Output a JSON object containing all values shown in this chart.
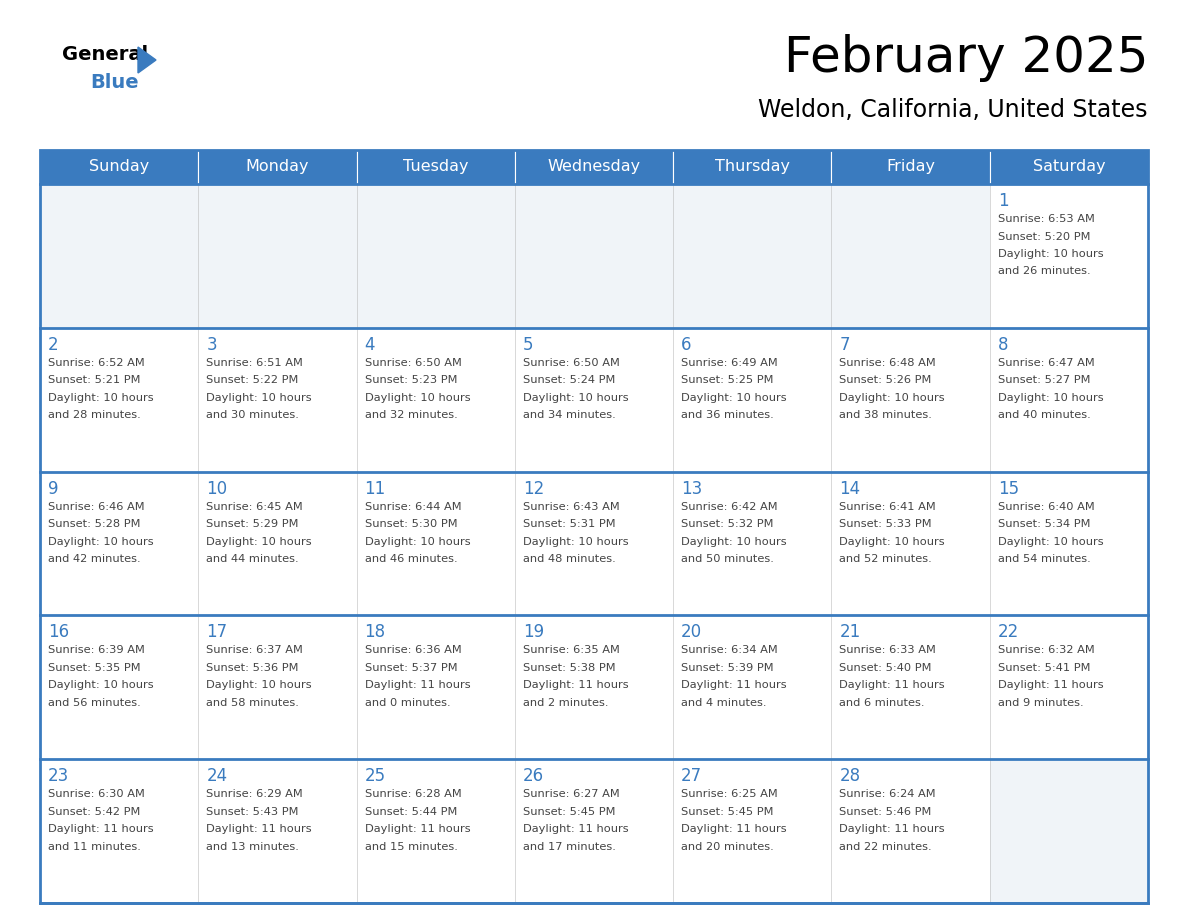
{
  "title": "February 2025",
  "subtitle": "Weldon, California, United States",
  "header_bg": "#3a7bbf",
  "header_text_color": "#ffffff",
  "day_number_color": "#3a7bbf",
  "text_color": "#444444",
  "line_color": "#3a7bbf",
  "border_color": "#3a7bbf",
  "cell_bg": "#ffffff",
  "empty_cell_bg": "#f0f4f8",
  "days_of_week": [
    "Sunday",
    "Monday",
    "Tuesday",
    "Wednesday",
    "Thursday",
    "Friday",
    "Saturday"
  ],
  "weeks": [
    [
      {
        "day": null,
        "sunrise": null,
        "sunset": null,
        "daylight": null
      },
      {
        "day": null,
        "sunrise": null,
        "sunset": null,
        "daylight": null
      },
      {
        "day": null,
        "sunrise": null,
        "sunset": null,
        "daylight": null
      },
      {
        "day": null,
        "sunrise": null,
        "sunset": null,
        "daylight": null
      },
      {
        "day": null,
        "sunrise": null,
        "sunset": null,
        "daylight": null
      },
      {
        "day": null,
        "sunrise": null,
        "sunset": null,
        "daylight": null
      },
      {
        "day": 1,
        "sunrise": "6:53 AM",
        "sunset": "5:20 PM",
        "daylight": "10 hours\nand 26 minutes."
      }
    ],
    [
      {
        "day": 2,
        "sunrise": "6:52 AM",
        "sunset": "5:21 PM",
        "daylight": "10 hours\nand 28 minutes."
      },
      {
        "day": 3,
        "sunrise": "6:51 AM",
        "sunset": "5:22 PM",
        "daylight": "10 hours\nand 30 minutes."
      },
      {
        "day": 4,
        "sunrise": "6:50 AM",
        "sunset": "5:23 PM",
        "daylight": "10 hours\nand 32 minutes."
      },
      {
        "day": 5,
        "sunrise": "6:50 AM",
        "sunset": "5:24 PM",
        "daylight": "10 hours\nand 34 minutes."
      },
      {
        "day": 6,
        "sunrise": "6:49 AM",
        "sunset": "5:25 PM",
        "daylight": "10 hours\nand 36 minutes."
      },
      {
        "day": 7,
        "sunrise": "6:48 AM",
        "sunset": "5:26 PM",
        "daylight": "10 hours\nand 38 minutes."
      },
      {
        "day": 8,
        "sunrise": "6:47 AM",
        "sunset": "5:27 PM",
        "daylight": "10 hours\nand 40 minutes."
      }
    ],
    [
      {
        "day": 9,
        "sunrise": "6:46 AM",
        "sunset": "5:28 PM",
        "daylight": "10 hours\nand 42 minutes."
      },
      {
        "day": 10,
        "sunrise": "6:45 AM",
        "sunset": "5:29 PM",
        "daylight": "10 hours\nand 44 minutes."
      },
      {
        "day": 11,
        "sunrise": "6:44 AM",
        "sunset": "5:30 PM",
        "daylight": "10 hours\nand 46 minutes."
      },
      {
        "day": 12,
        "sunrise": "6:43 AM",
        "sunset": "5:31 PM",
        "daylight": "10 hours\nand 48 minutes."
      },
      {
        "day": 13,
        "sunrise": "6:42 AM",
        "sunset": "5:32 PM",
        "daylight": "10 hours\nand 50 minutes."
      },
      {
        "day": 14,
        "sunrise": "6:41 AM",
        "sunset": "5:33 PM",
        "daylight": "10 hours\nand 52 minutes."
      },
      {
        "day": 15,
        "sunrise": "6:40 AM",
        "sunset": "5:34 PM",
        "daylight": "10 hours\nand 54 minutes."
      }
    ],
    [
      {
        "day": 16,
        "sunrise": "6:39 AM",
        "sunset": "5:35 PM",
        "daylight": "10 hours\nand 56 minutes."
      },
      {
        "day": 17,
        "sunrise": "6:37 AM",
        "sunset": "5:36 PM",
        "daylight": "10 hours\nand 58 minutes."
      },
      {
        "day": 18,
        "sunrise": "6:36 AM",
        "sunset": "5:37 PM",
        "daylight": "11 hours\nand 0 minutes."
      },
      {
        "day": 19,
        "sunrise": "6:35 AM",
        "sunset": "5:38 PM",
        "daylight": "11 hours\nand 2 minutes."
      },
      {
        "day": 20,
        "sunrise": "6:34 AM",
        "sunset": "5:39 PM",
        "daylight": "11 hours\nand 4 minutes."
      },
      {
        "day": 21,
        "sunrise": "6:33 AM",
        "sunset": "5:40 PM",
        "daylight": "11 hours\nand 6 minutes."
      },
      {
        "day": 22,
        "sunrise": "6:32 AM",
        "sunset": "5:41 PM",
        "daylight": "11 hours\nand 9 minutes."
      }
    ],
    [
      {
        "day": 23,
        "sunrise": "6:30 AM",
        "sunset": "5:42 PM",
        "daylight": "11 hours\nand 11 minutes."
      },
      {
        "day": 24,
        "sunrise": "6:29 AM",
        "sunset": "5:43 PM",
        "daylight": "11 hours\nand 13 minutes."
      },
      {
        "day": 25,
        "sunrise": "6:28 AM",
        "sunset": "5:44 PM",
        "daylight": "11 hours\nand 15 minutes."
      },
      {
        "day": 26,
        "sunrise": "6:27 AM",
        "sunset": "5:45 PM",
        "daylight": "11 hours\nand 17 minutes."
      },
      {
        "day": 27,
        "sunrise": "6:25 AM",
        "sunset": "5:45 PM",
        "daylight": "11 hours\nand 20 minutes."
      },
      {
        "day": 28,
        "sunrise": "6:24 AM",
        "sunset": "5:46 PM",
        "daylight": "11 hours\nand 22 minutes."
      },
      {
        "day": null,
        "sunrise": null,
        "sunset": null,
        "daylight": null
      }
    ]
  ]
}
